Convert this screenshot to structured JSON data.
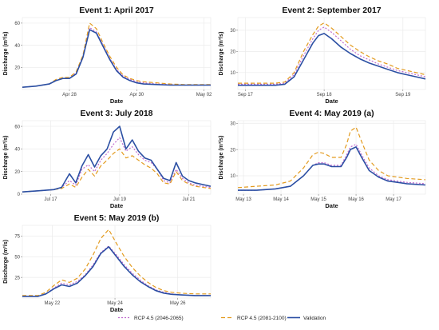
{
  "legend": {
    "items": [
      {
        "label": "RCP 4.5 (2046-2065)",
        "color": "#c06bcf",
        "dash": "2,2",
        "sample": "dots"
      },
      {
        "label": "RCP 4.5 (2081-2100)",
        "color": "#e39b1f",
        "dash": "5,3",
        "sample": "dashes"
      },
      {
        "label": "Validation",
        "color": "#2b4fa3",
        "dash": "",
        "sample": "solid"
      }
    ]
  },
  "chart_data": [
    {
      "type": "line",
      "title": "Event 1: April 2017",
      "xlabel": "Date",
      "ylabel": "Discharge (m³/s)",
      "xlim": [
        0,
        14
      ],
      "ylim": [
        0,
        65
      ],
      "xticks": [
        {
          "v": 3.5,
          "label": "Apr 28"
        },
        {
          "v": 8.5,
          "label": "Apr 30"
        },
        {
          "v": 13.5,
          "label": "May 02"
        }
      ],
      "yticks": [
        20,
        40,
        60
      ],
      "x": [
        0,
        1,
        2,
        2.5,
        3,
        3.5,
        4,
        4.5,
        5,
        5.5,
        6,
        6.5,
        7,
        7.5,
        8,
        8.5,
        9,
        10,
        11,
        12,
        13,
        14
      ],
      "series": [
        {
          "values": [
            2,
            3,
            5,
            8,
            10,
            10,
            15,
            30,
            56,
            52,
            40,
            28,
            18,
            12,
            9,
            7,
            6,
            5,
            4.5,
            4,
            4,
            4
          ]
        },
        {
          "values": [
            2,
            3,
            5,
            9,
            11,
            11,
            16,
            31,
            60,
            55,
            42,
            30,
            20,
            13,
            10,
            8,
            7,
            6,
            5,
            4.5,
            4.5,
            4.5
          ]
        },
        {
          "values": [
            2,
            3,
            5,
            8,
            10,
            10,
            14,
            29,
            54,
            51,
            39,
            27,
            17,
            11,
            8,
            6,
            5,
            4.5,
            4,
            4,
            4,
            4
          ]
        }
      ]
    },
    {
      "type": "line",
      "title": "Event 2: September 2017",
      "xlabel": "Date",
      "ylabel": "Discharge (m³/s)",
      "xlim": [
        0,
        10
      ],
      "ylim": [
        2,
        36
      ],
      "xticks": [
        {
          "v": 0.4,
          "label": "Sep 17"
        },
        {
          "v": 4.6,
          "label": "Sep 18"
        },
        {
          "v": 8.8,
          "label": "Sep 19"
        }
      ],
      "yticks": [
        10,
        20,
        30
      ],
      "x": [
        0,
        1,
        2,
        2.5,
        3,
        3.5,
        4,
        4.3,
        4.6,
        5,
        5.5,
        6,
        6.5,
        7,
        7.5,
        8,
        8.5,
        9,
        9.5,
        10
      ],
      "series": [
        {
          "values": [
            4.5,
            4.5,
            4.5,
            5,
            9,
            18,
            26,
            30,
            31.5,
            29,
            25,
            21,
            18,
            16,
            14,
            12.5,
            11,
            10,
            9,
            8
          ]
        },
        {
          "values": [
            5,
            5,
            5,
            5.5,
            10,
            20,
            28,
            32,
            33.5,
            31,
            27,
            23,
            20,
            17.5,
            15.5,
            14,
            12,
            11,
            10,
            9
          ]
        },
        {
          "values": [
            4,
            4,
            4,
            4.5,
            8,
            16,
            24,
            27.5,
            28.5,
            26,
            22,
            19,
            16.5,
            14.5,
            13,
            11.5,
            10,
            9,
            8,
            7
          ]
        }
      ]
    },
    {
      "type": "line",
      "title": "Event 3: July 2018",
      "xlabel": "Date",
      "ylabel": "Discharge (m³/s)",
      "xlim": [
        0,
        12
      ],
      "ylim": [
        0,
        65
      ],
      "xticks": [
        {
          "v": 1.8,
          "label": "Jul 17"
        },
        {
          "v": 6.2,
          "label": "Jul 19"
        },
        {
          "v": 10.6,
          "label": "Jul 21"
        }
      ],
      "yticks": [
        0,
        20,
        40,
        60
      ],
      "x": [
        0,
        1,
        2,
        2.5,
        3,
        3.4,
        3.8,
        4.2,
        4.6,
        5,
        5.4,
        5.8,
        6.2,
        6.6,
        7,
        7.4,
        7.8,
        8.2,
        8.6,
        9,
        9.4,
        9.8,
        10.2,
        10.6,
        11,
        12
      ],
      "series": [
        {
          "values": [
            2,
            3,
            4,
            6,
            12,
            8,
            22,
            26,
            20,
            30,
            36,
            44,
            50,
            38,
            42,
            35,
            30,
            28,
            22,
            12,
            10,
            22,
            14,
            10,
            8,
            6
          ]
        },
        {
          "values": [
            2,
            3,
            4,
            5,
            9,
            6,
            15,
            22,
            16,
            25,
            30,
            36,
            40,
            32,
            34,
            30,
            26,
            23,
            18,
            10,
            9,
            20,
            12,
            9,
            7,
            5
          ]
        },
        {
          "values": [
            2,
            3,
            4,
            6,
            18,
            10,
            25,
            35,
            24,
            34,
            40,
            55,
            60,
            40,
            48,
            38,
            32,
            30,
            22,
            14,
            12,
            28,
            16,
            12,
            10,
            7
          ]
        }
      ]
    },
    {
      "type": "line",
      "title": "Event 4: May 2019 (a)",
      "xlabel": "Date",
      "ylabel": "Discharge (m³/s)",
      "xlim": [
        0,
        10
      ],
      "ylim": [
        3,
        31
      ],
      "xticks": [
        {
          "v": 0.3,
          "label": "May 13"
        },
        {
          "v": 2.3,
          "label": "May 14"
        },
        {
          "v": 4.3,
          "label": "May 15"
        },
        {
          "v": 6.3,
          "label": "May 16"
        },
        {
          "v": 8.3,
          "label": "May 17"
        }
      ],
      "yticks": [
        10,
        20,
        30
      ],
      "x": [
        0,
        1,
        2,
        2.8,
        3.5,
        4,
        4.3,
        4.6,
        5,
        5.5,
        5.8,
        6,
        6.3,
        6.6,
        7,
        7.5,
        8,
        8.5,
        9,
        10
      ],
      "series": [
        {
          "values": [
            4.5,
            4.5,
            5,
            6,
            10,
            14,
            15,
            15,
            14,
            14,
            18,
            21,
            22,
            18,
            13,
            10,
            8.5,
            8,
            7.5,
            7
          ]
        },
        {
          "values": [
            5.5,
            6,
            6.5,
            8,
            13,
            18,
            19,
            18.5,
            17,
            17,
            22,
            27,
            28.5,
            23,
            16,
            12,
            10,
            9.5,
            9,
            8.5
          ]
        },
        {
          "values": [
            4.5,
            4.5,
            5,
            6,
            10,
            14,
            14.5,
            14.5,
            13.5,
            13.5,
            17,
            20,
            21,
            17,
            12,
            9.5,
            8,
            7.5,
            7,
            6.5
          ]
        }
      ]
    },
    {
      "type": "line",
      "title": "Event 5: May 2019 (b)",
      "xlabel": "Date",
      "ylabel": "Discharge (m³/s)",
      "xlim": [
        0,
        12
      ],
      "ylim": [
        0,
        88
      ],
      "xticks": [
        {
          "v": 1.9,
          "label": "May 22"
        },
        {
          "v": 5.9,
          "label": "May 24"
        },
        {
          "v": 9.9,
          "label": "May 26"
        }
      ],
      "yticks": [
        25,
        50,
        75
      ],
      "x": [
        0,
        1,
        1.5,
        2,
        2.5,
        3,
        3.5,
        4,
        4.5,
        5,
        5.5,
        6,
        6.5,
        7,
        7.5,
        8,
        8.5,
        9,
        9.5,
        10,
        11,
        12
      ],
      "series": [
        {
          "values": [
            2,
            2,
            5,
            12,
            18,
            16,
            20,
            28,
            40,
            55,
            63,
            52,
            40,
            30,
            22,
            15,
            10,
            7,
            5,
            4,
            3,
            3
          ]
        },
        {
          "values": [
            3,
            3,
            7,
            15,
            22,
            19,
            24,
            35,
            52,
            72,
            83,
            66,
            50,
            37,
            27,
            19,
            13,
            9,
            7,
            6,
            5,
            5
          ]
        },
        {
          "values": [
            2,
            2,
            5,
            11,
            16,
            14,
            18,
            27,
            38,
            54,
            62,
            50,
            38,
            28,
            20,
            14,
            9,
            6,
            4.5,
            4,
            3,
            3
          ]
        }
      ]
    }
  ]
}
